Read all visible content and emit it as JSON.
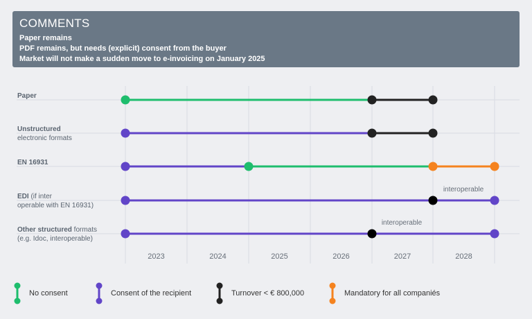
{
  "comments": {
    "title": "COMMENTS",
    "lines": [
      "Paper remains",
      "PDF remains, but needs (explicit) consent from the buyer",
      "Market will not make a sudden move to e-invoicing on January 2025"
    ]
  },
  "colors": {
    "no_consent": "#1ebd6d",
    "consent_recipient": "#6145c8",
    "turnover": "#222222",
    "mandatory": "#f5831f"
  },
  "legend": [
    {
      "key": "no_consent",
      "label": "No consent"
    },
    {
      "key": "consent_recipient",
      "label": "Consent of the recipient"
    },
    {
      "key": "turnover",
      "label": "Turnover < € 800,000"
    },
    {
      "key": "mandatory",
      "label": "Mandatory for all companiés"
    }
  ],
  "chart_data": {
    "type": "timeline",
    "x_ticks": [
      "2023",
      "2024",
      "2025",
      "2026",
      "2027",
      "2028"
    ],
    "rows": [
      {
        "label_bold": "Paper",
        "label_rest": "",
        "note": "",
        "points": [
          0,
          4,
          5
        ],
        "segments": [
          {
            "from": 0,
            "to": 4,
            "key": "no_consent"
          },
          {
            "from": 4,
            "to": 5,
            "key": "turnover"
          }
        ]
      },
      {
        "label_bold": "Unstructured",
        "label_rest": "electronic formats",
        "note": "",
        "points": [
          0,
          4,
          5
        ],
        "segments": [
          {
            "from": 0,
            "to": 4,
            "key": "consent_recipient"
          },
          {
            "from": 4,
            "to": 5,
            "key": "turnover"
          }
        ]
      },
      {
        "label_bold": "EN 16931",
        "label_rest": "",
        "note": "",
        "points": [
          0,
          2,
          5,
          6
        ],
        "segments": [
          {
            "from": 0,
            "to": 2,
            "key": "consent_recipient"
          },
          {
            "from": 2,
            "to": 5,
            "key": "no_consent"
          },
          {
            "from": 5,
            "to": 6,
            "key": "mandatory"
          }
        ]
      },
      {
        "label_bold": "EDI",
        "label_rest": " (if inter operable with EN 16931)",
        "note": "interoperable",
        "points": [
          0,
          5,
          6
        ],
        "segments": [
          {
            "from": 0,
            "to": 6,
            "key": "consent_recipient"
          }
        ]
      },
      {
        "label_bold": "Other structured",
        "label_rest": " formats (e.g. Idoc, interoperable)",
        "note": "interoperable",
        "points": [
          0,
          4,
          6
        ],
        "segments": [
          {
            "from": 0,
            "to": 6,
            "key": "consent_recipient"
          }
        ]
      }
    ]
  }
}
